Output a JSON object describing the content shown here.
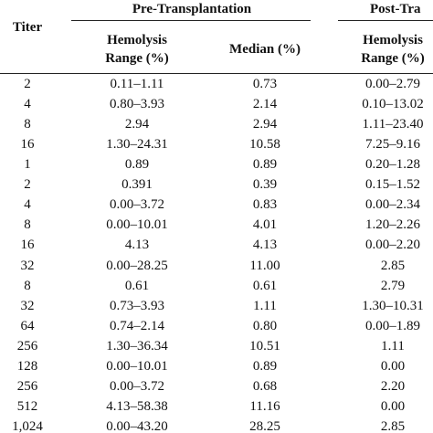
{
  "table": {
    "header": {
      "titer": "Titer",
      "groups": [
        "Pre-Transplantation",
        "Post-Tra"
      ],
      "columns": [
        "Hemolysis Range (%)",
        "Median (%)",
        "Hemolysis Range (%)"
      ]
    },
    "rows": [
      [
        "2",
        "0.11–1.11",
        "0.73",
        "0.00–2.79"
      ],
      [
        "4",
        "0.80–3.93",
        "2.14",
        "0.10–13.02"
      ],
      [
        "8",
        "2.94",
        "2.94",
        "1.11–23.40"
      ],
      [
        "16",
        "1.30–24.31",
        "10.58",
        "7.25–9.16"
      ],
      [
        "1",
        "0.89",
        "0.89",
        "0.20–1.28"
      ],
      [
        "2",
        "0.391",
        "0.39",
        "0.15–1.52"
      ],
      [
        "4",
        "0.00–3.72",
        "0.83",
        "0.00–2.34"
      ],
      [
        "8",
        "0.00–10.01",
        "4.01",
        "1.20–2.26"
      ],
      [
        "16",
        "4.13",
        "4.13",
        "0.00–2.20"
      ],
      [
        "32",
        "0.00–28.25",
        "11.00",
        "2.85"
      ],
      [
        "8",
        "0.61",
        "0.61",
        "2.79"
      ],
      [
        "32",
        "0.73–3.93",
        "1.11",
        "1.30–10.31"
      ],
      [
        "64",
        "0.74–2.14",
        "0.80",
        "0.00–1.89"
      ],
      [
        "256",
        "1.30–36.34",
        "10.51",
        "1.11"
      ],
      [
        "128",
        "0.00–10.01",
        "0.89",
        "0.00"
      ],
      [
        "256",
        "0.00–3.72",
        "0.68",
        "2.20"
      ],
      [
        "512",
        "4.13–58.38",
        "11.16",
        "0.00"
      ],
      [
        "1,024",
        "0.00–43.20",
        "28.25",
        "2.85"
      ]
    ]
  }
}
